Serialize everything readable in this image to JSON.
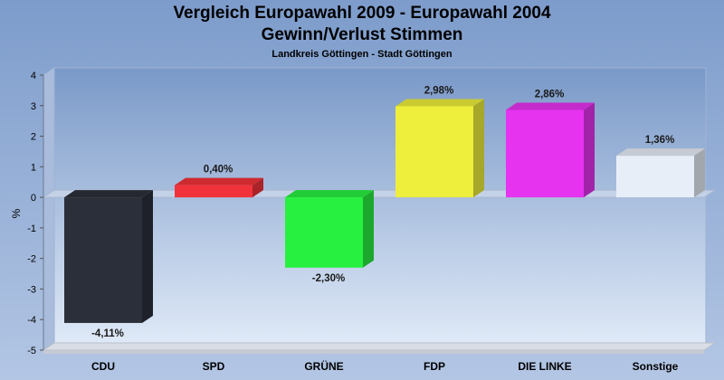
{
  "chart_data": {
    "type": "bar",
    "title": "Vergleich Europawahl 2009 - Europawahl 2004",
    "subtitle": "Gewinn/Verlust Stimmen",
    "caption": "Landkreis Göttingen - Stadt Göttingen",
    "ylabel": "%",
    "xlabel": "",
    "ylim": [
      -5,
      4
    ],
    "yticks": [
      "-5",
      "-4",
      "-3",
      "-2",
      "-1",
      "0",
      "1",
      "2",
      "3",
      "4"
    ],
    "categories": [
      "CDU",
      "SPD",
      "GRÜNE",
      "FDP",
      "DIE LINKE",
      "Sonstige"
    ],
    "values": [
      -4.11,
      0.4,
      -2.3,
      2.98,
      2.86,
      1.36
    ],
    "value_labels": [
      "-4,11%",
      "0,40%",
      "-2,30%",
      "2,98%",
      "2,86%",
      "1,36%"
    ],
    "colors": [
      "#2b2f3a",
      "#f2323a",
      "#28f040",
      "#eeee3c",
      "#e633f0",
      "#e8eef8"
    ],
    "grid": false,
    "legend": "none",
    "style": "3d-bar"
  }
}
